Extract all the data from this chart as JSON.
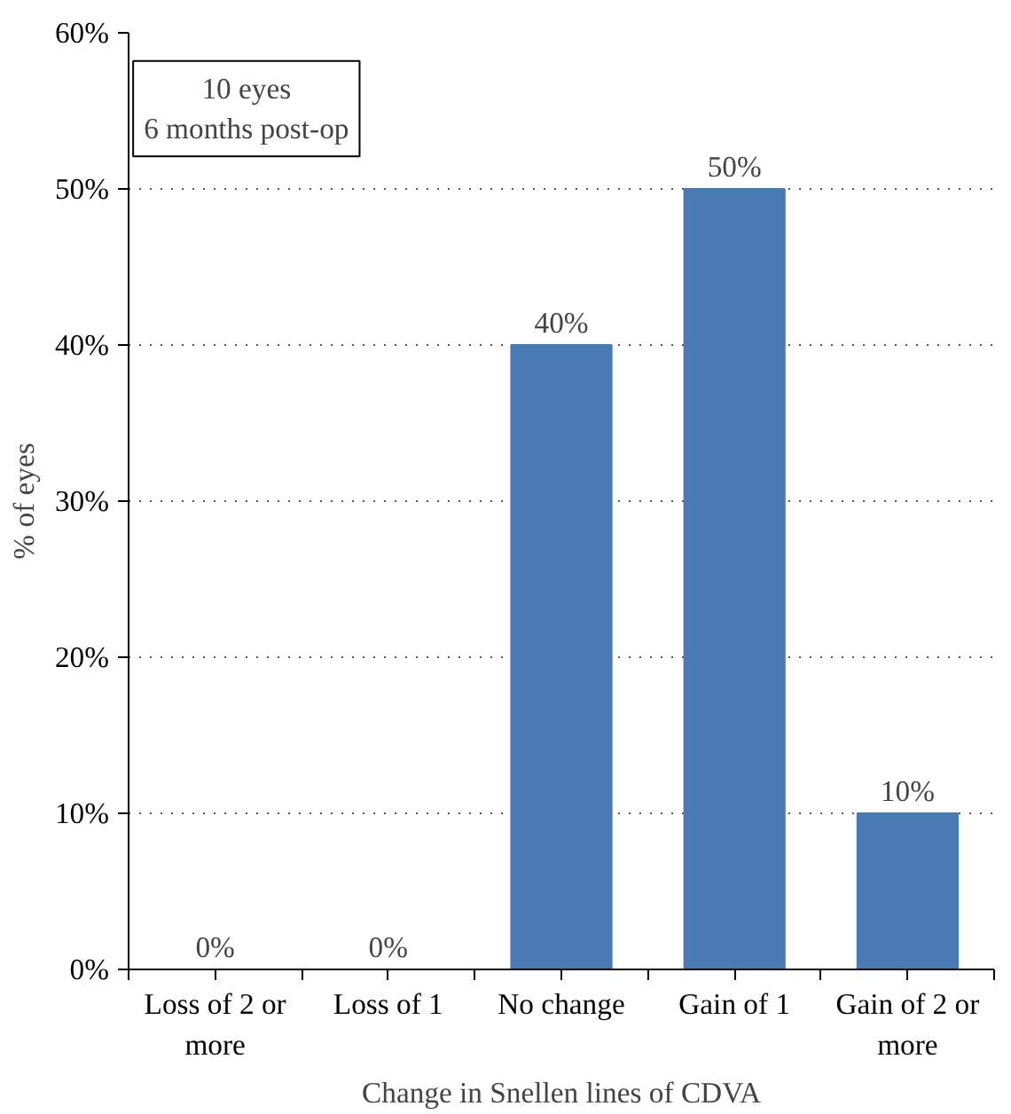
{
  "chart_data": {
    "type": "bar",
    "xlabel": "Change in Snellen lines of CDVA",
    "ylabel": "% of eyes",
    "categories": [
      "Loss of 2 or\nmore",
      "Loss of 1",
      "No change",
      "Gain of 1",
      "Gain of 2 or\nmore"
    ],
    "values": [
      0,
      0,
      40,
      50,
      10
    ],
    "value_labels": [
      "0%",
      "0%",
      "40%",
      "50%",
      "10%"
    ],
    "color": "#4a7ab5",
    "ylim": [
      0,
      60
    ],
    "yticks": [
      {
        "value": 0,
        "label": "0%"
      },
      {
        "value": 10,
        "label": "10%"
      },
      {
        "value": 20,
        "label": "20%"
      },
      {
        "value": 30,
        "label": "30%"
      },
      {
        "value": 40,
        "label": "40%"
      },
      {
        "value": 50,
        "label": "50%"
      },
      {
        "value": 60,
        "label": "60%"
      }
    ],
    "grid": "y",
    "annotations": [
      "10 eyes\n6 months post-op"
    ]
  }
}
